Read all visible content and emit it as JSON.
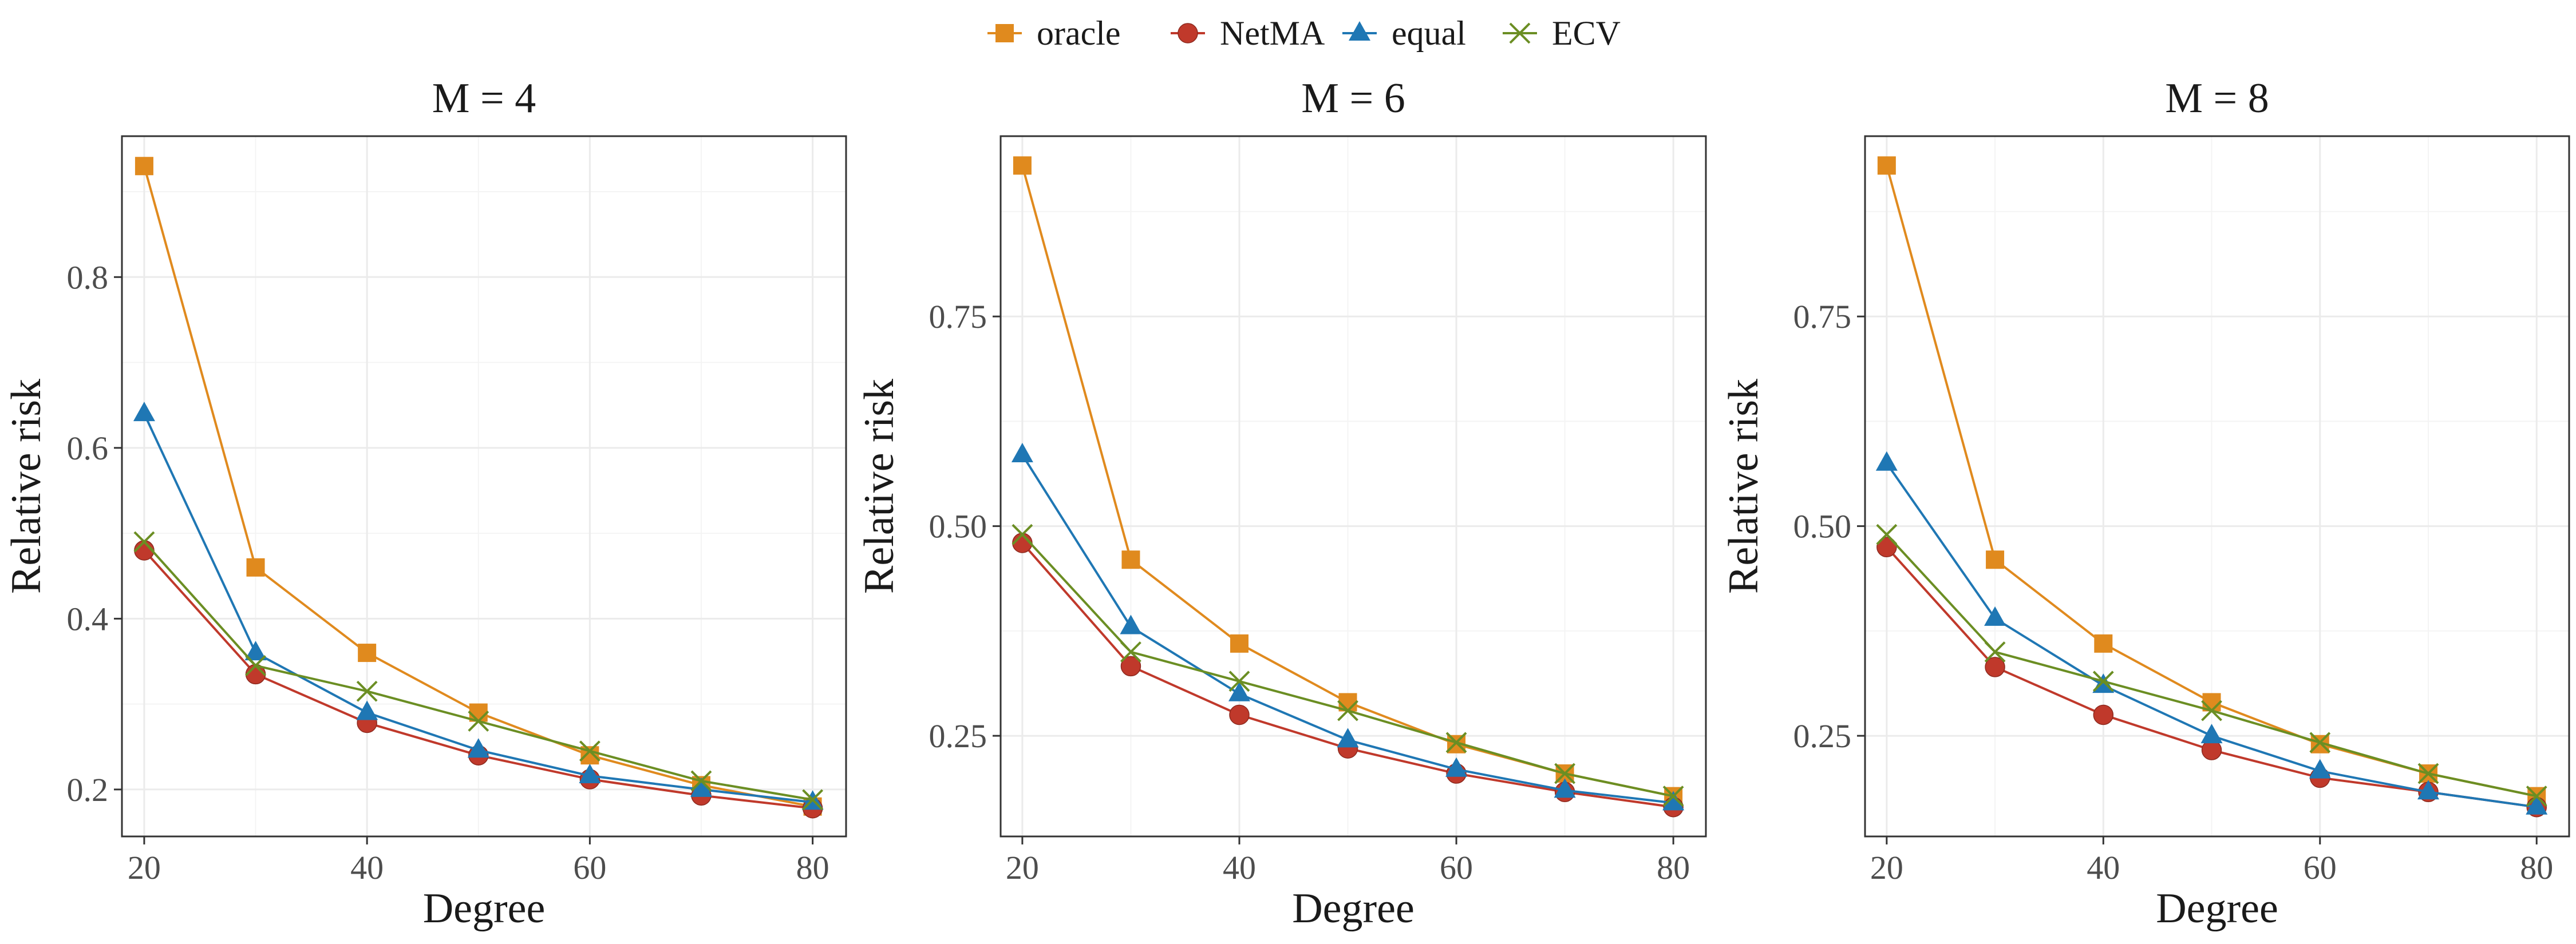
{
  "chart_data": [
    {
      "type": "line",
      "title": "M = 4",
      "xlabel": "Degree",
      "ylabel": "Relative risk",
      "x": [
        20,
        30,
        40,
        50,
        60,
        70,
        80
      ],
      "xlim": [
        18,
        83
      ],
      "ylim": [
        0.145,
        0.965
      ],
      "xticks": [
        20,
        40,
        60,
        80
      ],
      "xtick_labels": [
        "20",
        "40",
        "60",
        "80"
      ],
      "yticks": [
        0.2,
        0.4,
        0.6,
        0.8
      ],
      "ytick_labels": [
        "0.2",
        "0.4",
        "0.6",
        "0.8"
      ],
      "grid": true,
      "series": [
        {
          "name": "oracle",
          "values": [
            0.93,
            0.46,
            0.36,
            0.29,
            0.24,
            0.205,
            0.18
          ]
        },
        {
          "name": "NetMA",
          "values": [
            0.48,
            0.335,
            0.278,
            0.24,
            0.212,
            0.193,
            0.178
          ]
        },
        {
          "name": "equal",
          "values": [
            0.64,
            0.36,
            0.29,
            0.246,
            0.216,
            0.2,
            0.185
          ]
        },
        {
          "name": "ECV",
          "values": [
            0.49,
            0.345,
            0.315,
            0.28,
            0.245,
            0.21,
            0.188
          ]
        }
      ]
    },
    {
      "type": "line",
      "title": "M = 6",
      "xlabel": "Degree",
      "ylabel": "Relative risk",
      "x": [
        20,
        30,
        40,
        50,
        60,
        70,
        80
      ],
      "xlim": [
        18,
        83
      ],
      "ylim": [
        0.13,
        0.965
      ],
      "xticks": [
        20,
        40,
        60,
        80
      ],
      "xtick_labels": [
        "20",
        "40",
        "60",
        "80"
      ],
      "yticks": [
        0.25,
        0.5,
        0.75
      ],
      "ytick_labels": [
        "0.25",
        "0.50",
        "0.75"
      ],
      "grid": true,
      "series": [
        {
          "name": "oracle",
          "values": [
            0.93,
            0.46,
            0.36,
            0.29,
            0.24,
            0.205,
            0.178
          ]
        },
        {
          "name": "NetMA",
          "values": [
            0.48,
            0.333,
            0.275,
            0.235,
            0.205,
            0.183,
            0.165
          ]
        },
        {
          "name": "equal",
          "values": [
            0.585,
            0.38,
            0.3,
            0.245,
            0.21,
            0.185,
            0.17
          ]
        },
        {
          "name": "ECV",
          "values": [
            0.49,
            0.35,
            0.315,
            0.28,
            0.242,
            0.205,
            0.178
          ]
        }
      ]
    },
    {
      "type": "line",
      "title": "M = 8",
      "xlabel": "Degree",
      "ylabel": "Relative risk",
      "x": [
        20,
        30,
        40,
        50,
        60,
        70,
        80
      ],
      "xlim": [
        18,
        83
      ],
      "ylim": [
        0.13,
        0.965
      ],
      "xticks": [
        20,
        40,
        60,
        80
      ],
      "xtick_labels": [
        "20",
        "40",
        "60",
        "80"
      ],
      "yticks": [
        0.25,
        0.5,
        0.75
      ],
      "ytick_labels": [
        "0.25",
        "0.50",
        "0.75"
      ],
      "grid": true,
      "series": [
        {
          "name": "oracle",
          "values": [
            0.93,
            0.46,
            0.36,
            0.29,
            0.24,
            0.205,
            0.178
          ]
        },
        {
          "name": "NetMA",
          "values": [
            0.475,
            0.332,
            0.275,
            0.233,
            0.2,
            0.183,
            0.165
          ]
        },
        {
          "name": "equal",
          "values": [
            0.575,
            0.39,
            0.31,
            0.25,
            0.208,
            0.183,
            0.165
          ]
        },
        {
          "name": "ECV",
          "values": [
            0.49,
            0.35,
            0.315,
            0.28,
            0.242,
            0.205,
            0.178
          ]
        }
      ]
    }
  ],
  "legend": {
    "position": "top",
    "items": [
      {
        "name": "oracle",
        "label": "oracle",
        "color": "#E08A1E",
        "marker": "square"
      },
      {
        "name": "NetMA",
        "label": "NetMA",
        "color": "#C0392B",
        "marker": "circle"
      },
      {
        "name": "equal",
        "label": "equal",
        "color": "#1F77B4",
        "marker": "triangle"
      },
      {
        "name": "ECV",
        "label": "ECV",
        "color": "#6B8E23",
        "marker": "cross"
      }
    ]
  }
}
